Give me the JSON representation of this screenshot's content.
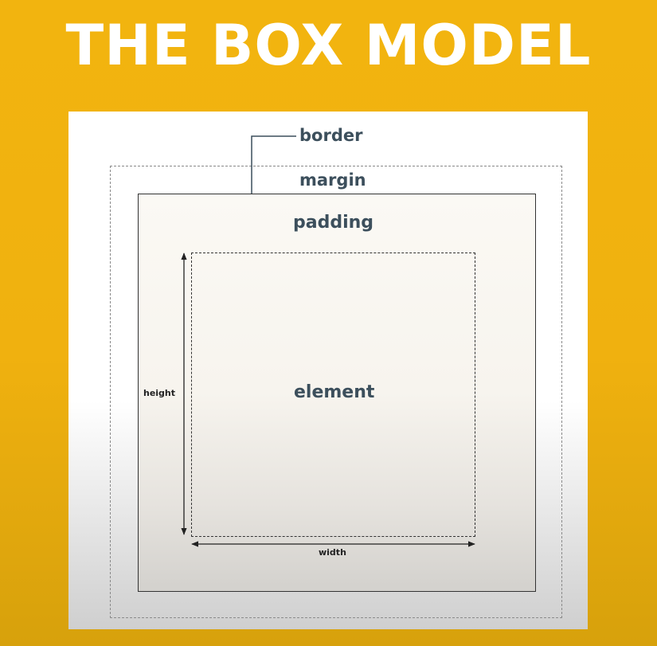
{
  "title": "THE BOX MODEL",
  "diagram": {
    "labels": {
      "border": "border",
      "margin": "margin",
      "padding": "padding",
      "element": "element",
      "height": "height",
      "width": "width"
    }
  },
  "colors": {
    "background": "#f2b40f",
    "title_text": "#ffffff",
    "label_text": "#3c4f5c",
    "line": "#333333",
    "dashed_margin": "#8a8a8a"
  }
}
